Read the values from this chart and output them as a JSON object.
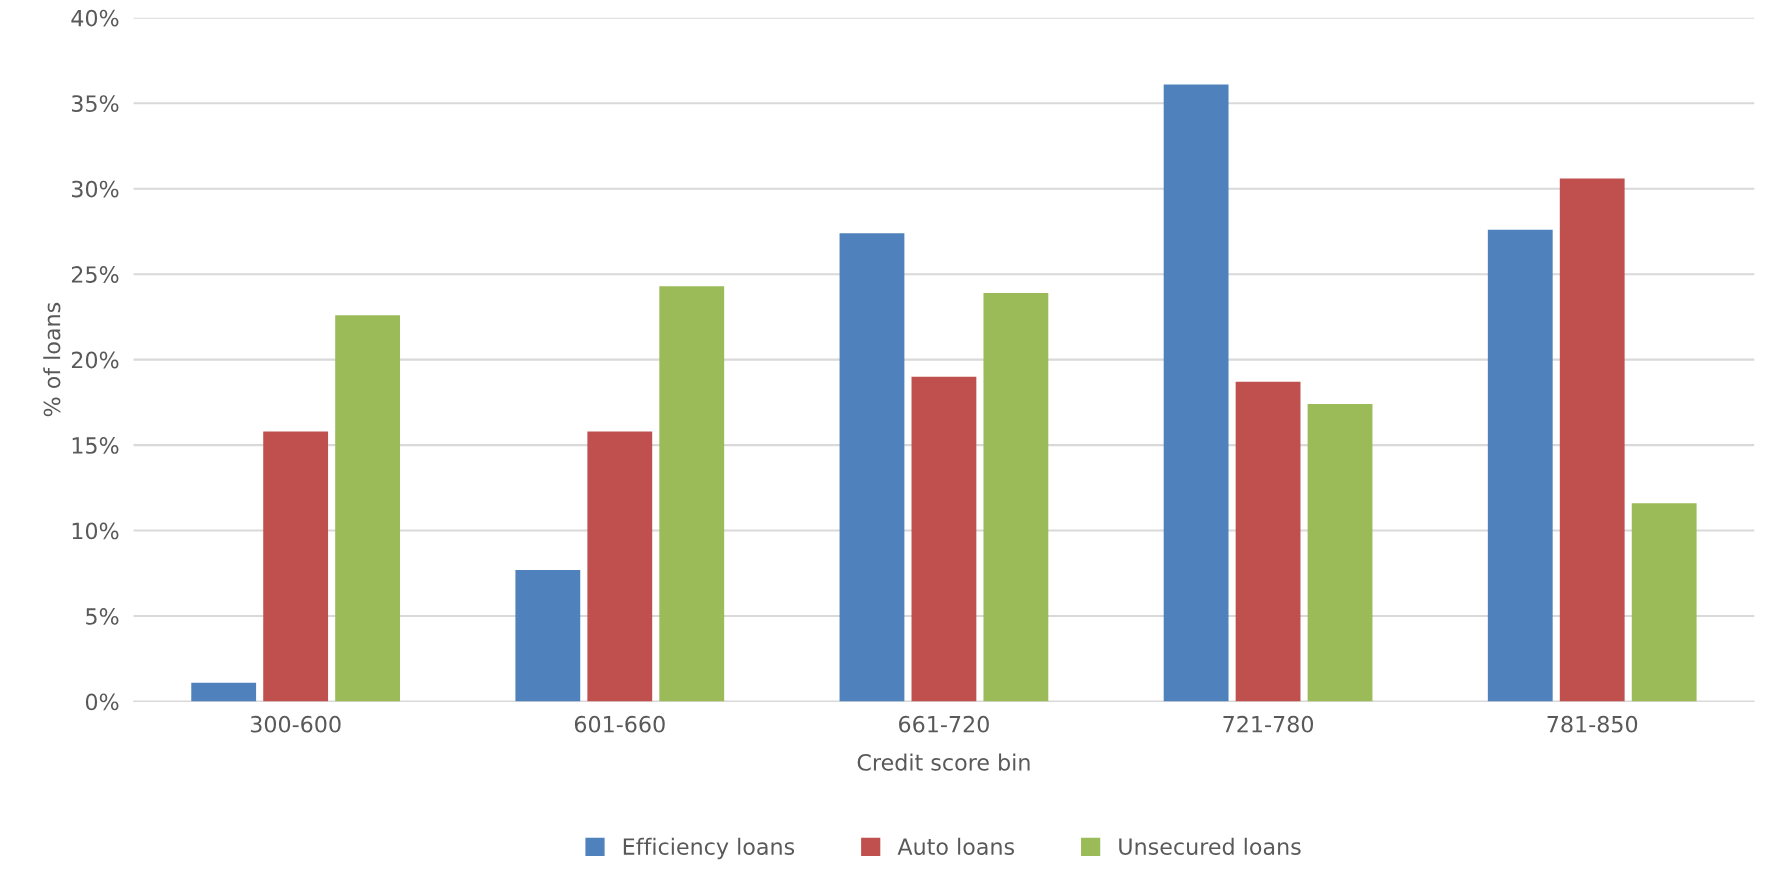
{
  "chart_data": {
    "type": "bar",
    "categories": [
      "300-600",
      "601-660",
      "661-720",
      "721-780",
      "781-850"
    ],
    "xlabel": "Credit score bin",
    "ylabel": "% of loans",
    "series": [
      {
        "name": "Efficiency loans",
        "color": "#4f81bd",
        "values": [
          1.1,
          7.7,
          27.4,
          36.1,
          27.6
        ]
      },
      {
        "name": "Auto loans",
        "color": "#c0504d",
        "values": [
          15.8,
          15.8,
          19.0,
          18.7,
          30.6
        ]
      },
      {
        "name": "Unsecured loans",
        "color": "#9bbb59",
        "values": [
          22.6,
          24.3,
          23.9,
          17.4,
          11.6
        ]
      }
    ],
    "ylim": [
      0,
      40
    ],
    "yticks": [
      {
        "value": 0,
        "label": "0%"
      },
      {
        "value": 5,
        "label": "5%"
      },
      {
        "value": 10,
        "label": "10%"
      },
      {
        "value": 15,
        "label": "15%"
      },
      {
        "value": 20,
        "label": "20%"
      },
      {
        "value": 25,
        "label": "25%"
      },
      {
        "value": 30,
        "label": "30%"
      },
      {
        "value": 35,
        "label": "35%"
      },
      {
        "value": 40,
        "label": "40%"
      }
    ],
    "grid": "y",
    "legend": "bottom"
  }
}
